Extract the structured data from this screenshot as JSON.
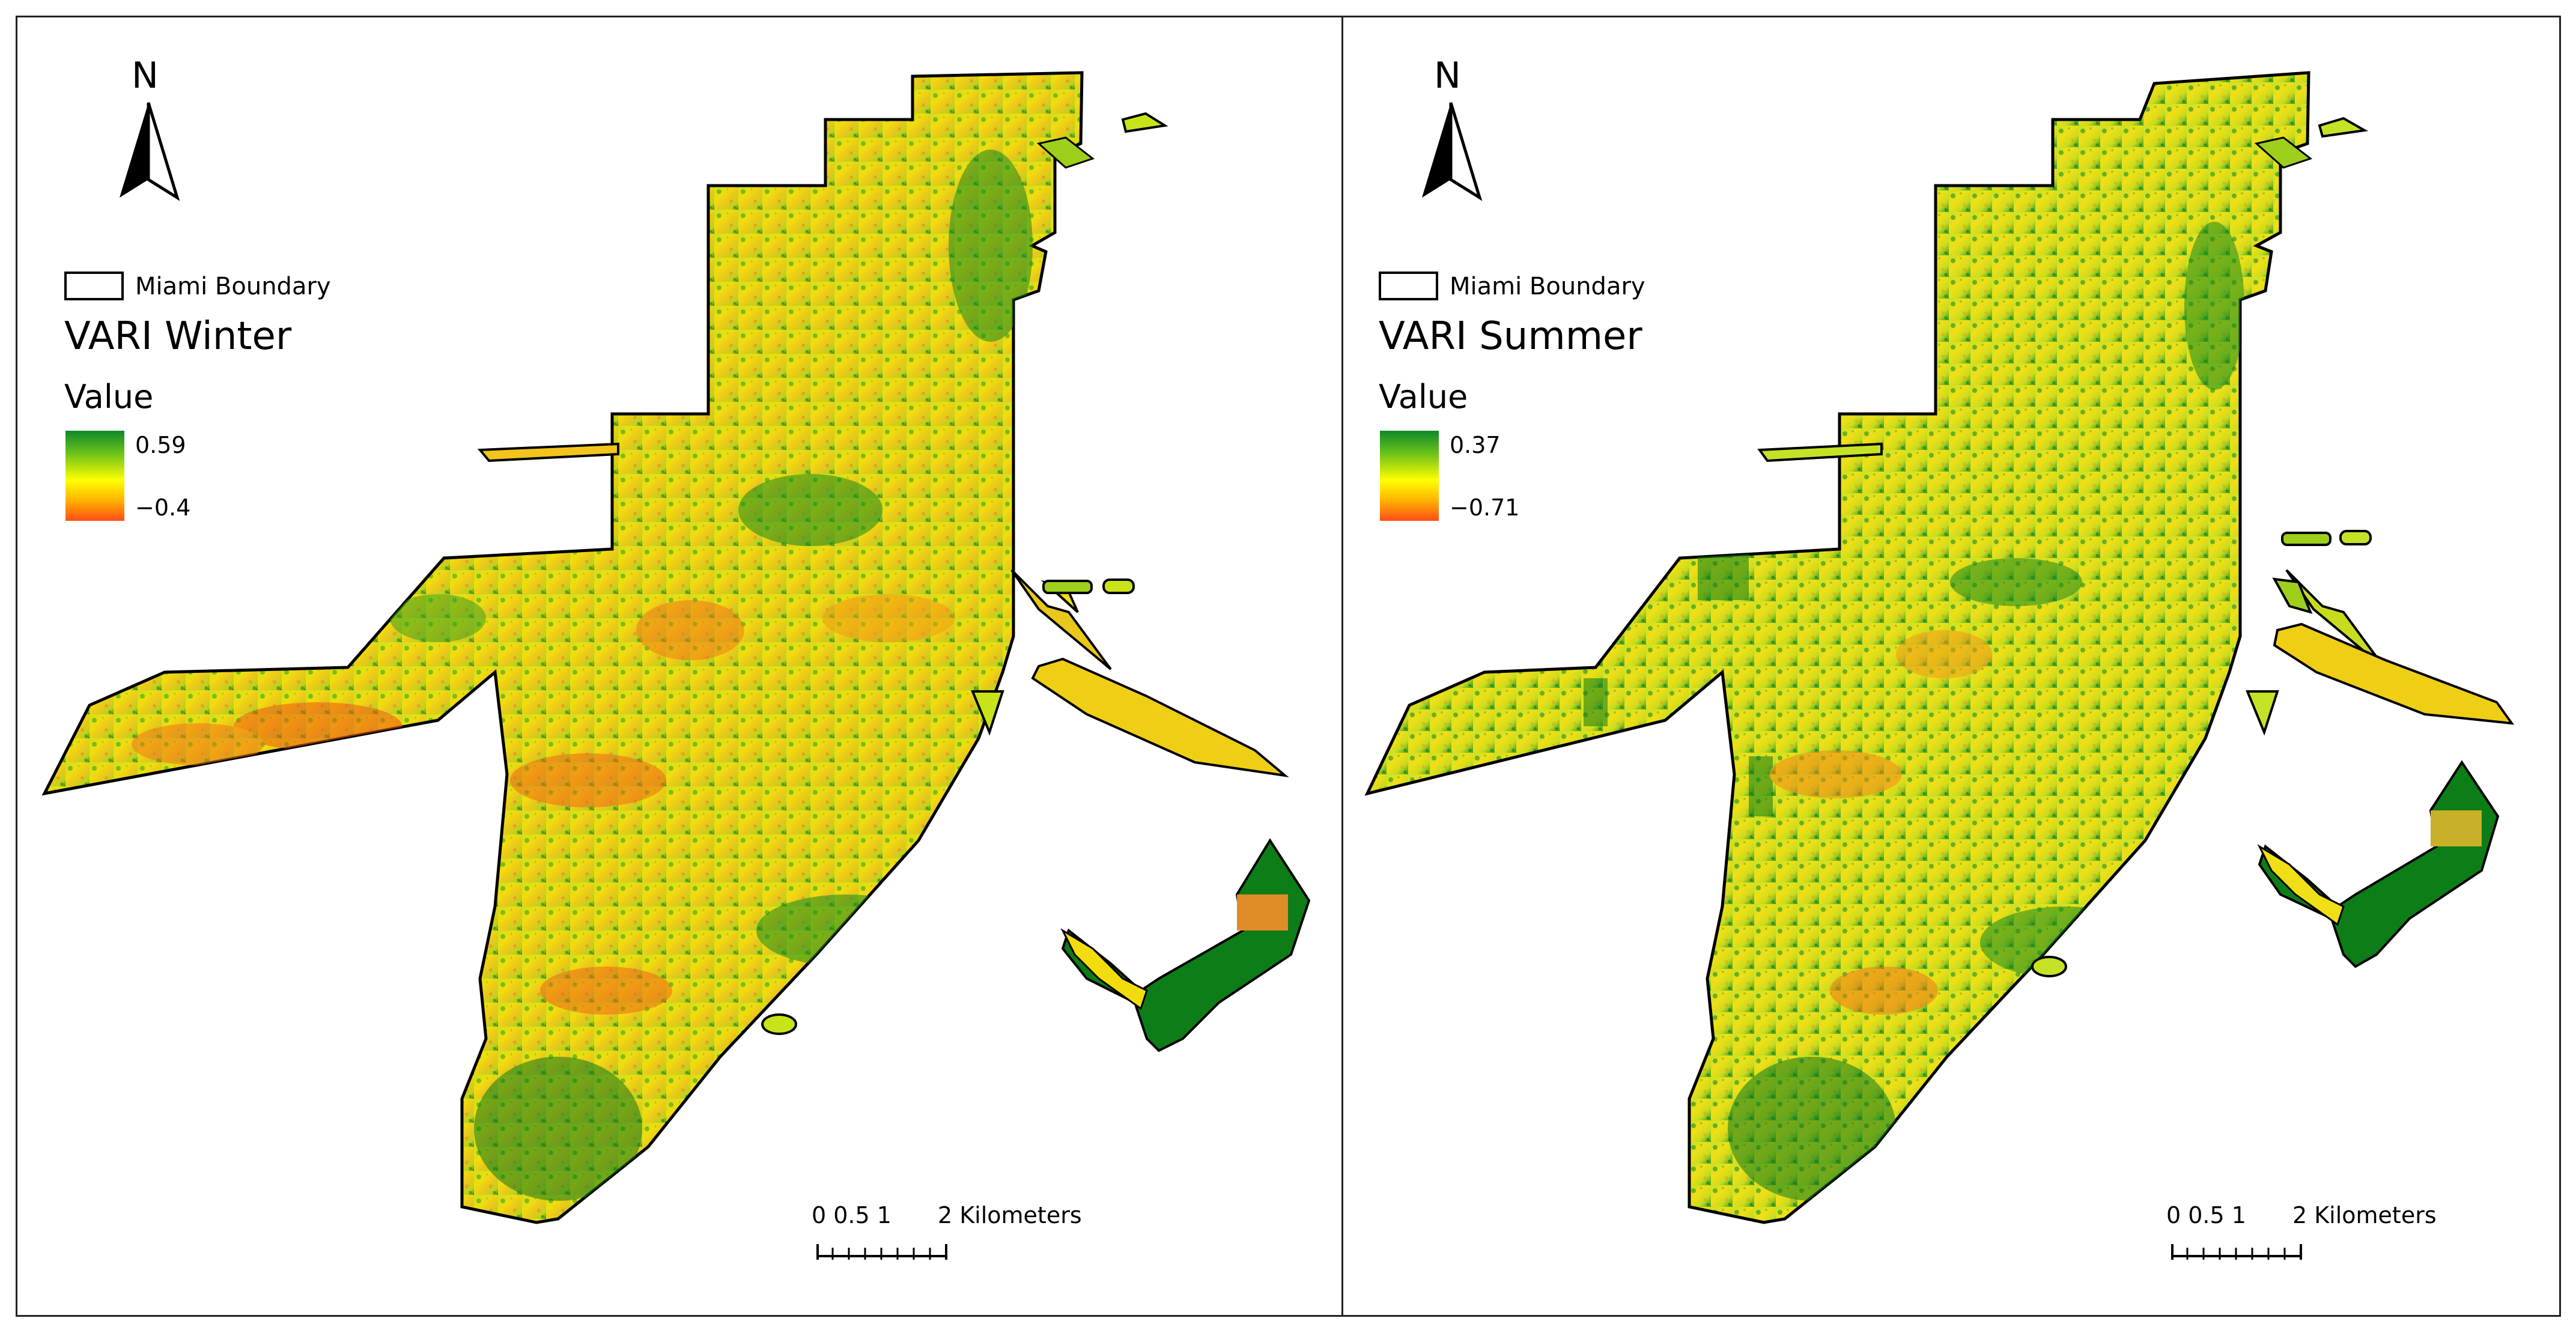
{
  "panels": [
    {
      "id": "winter",
      "north_label": "N",
      "boundary_label": "Miami Boundary",
      "layer_title": "VARI Winter",
      "value_heading": "Value",
      "ramp_max": "0.59",
      "ramp_min": "−0.4",
      "scale_labels": "0 0.5 1",
      "scale_end": "2 Kilometers"
    },
    {
      "id": "summer",
      "north_label": "N",
      "boundary_label": "Miami Boundary",
      "layer_title": "VARI Summer",
      "value_heading": "Value",
      "ramp_max": "0.37",
      "ramp_min": "−0.71",
      "scale_labels": "0 0.5 1",
      "scale_end": "2 Kilometers"
    }
  ],
  "colors": {
    "high": "#0d8a2a",
    "mid": "#ffff00",
    "low": "#ff4b17"
  }
}
